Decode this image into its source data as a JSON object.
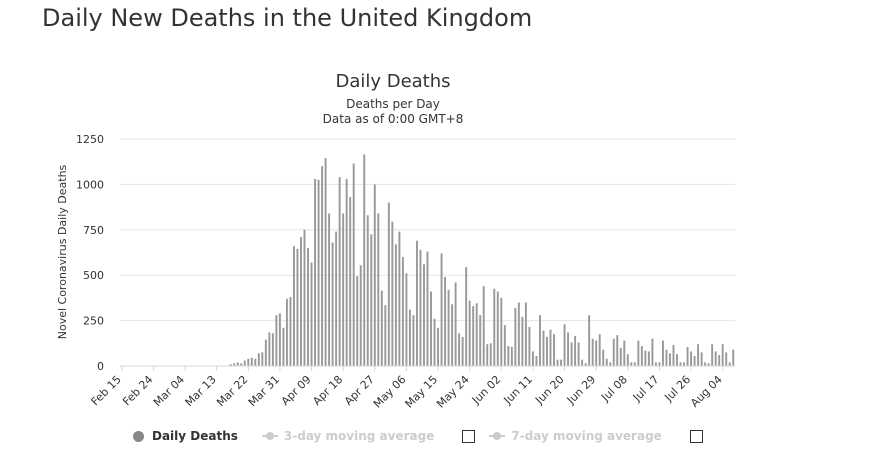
{
  "page": {
    "heading": "Daily New Deaths in the United Kingdom"
  },
  "chart_data": {
    "type": "bar",
    "title": "Daily Deaths",
    "subtitle_line1": "Deaths per Day",
    "subtitle_line2": "Data as of 0:00 GMT+8",
    "xlabel": "",
    "ylabel": "Novel Coronavirus Daily Deaths",
    "ylim": [
      0,
      1250
    ],
    "yticks": [
      0,
      250,
      500,
      750,
      1000,
      1250
    ],
    "grid": true,
    "legend_position": "bottom-left",
    "bar_color": "#999999",
    "start_date": "Feb 15",
    "xtick_labels": [
      "Feb 15",
      "Feb 24",
      "Mar 04",
      "Mar 13",
      "Mar 22",
      "Mar 31",
      "Apr 09",
      "Apr 18",
      "Apr 27",
      "May 06",
      "May 15",
      "May 24",
      "Jun 02",
      "Jun 11",
      "Jun 20",
      "Jun 29",
      "Jul 08",
      "Jul 17",
      "Jul 26",
      "Aug 04"
    ],
    "values": [
      0,
      0,
      0,
      0,
      0,
      0,
      0,
      0,
      0,
      0,
      0,
      0,
      0,
      0,
      0,
      0,
      0,
      0,
      0,
      0,
      0,
      0,
      0,
      0,
      0,
      0,
      0,
      0,
      0,
      0,
      0,
      10,
      15,
      20,
      15,
      30,
      40,
      45,
      40,
      70,
      75,
      145,
      185,
      180,
      280,
      290,
      210,
      370,
      380,
      660,
      645,
      710,
      750,
      650,
      570,
      1030,
      1025,
      1100,
      1145,
      840,
      680,
      740,
      1040,
      840,
      1030,
      930,
      1115,
      495,
      555,
      1165,
      830,
      725,
      1000,
      840,
      415,
      335,
      900,
      795,
      670,
      740,
      600,
      510,
      310,
      280,
      690,
      640,
      560,
      630,
      410,
      260,
      210,
      620,
      490,
      420,
      340,
      460,
      180,
      160,
      545,
      360,
      330,
      345,
      280,
      440,
      120,
      125,
      425,
      410,
      375,
      225,
      110,
      105,
      320,
      350,
      270,
      350,
      215,
      80,
      55,
      280,
      195,
      160,
      200,
      175,
      35,
      35,
      230,
      185,
      130,
      165,
      130,
      35,
      15,
      280,
      150,
      140,
      175,
      90,
      40,
      20,
      150,
      170,
      100,
      140,
      65,
      20,
      20,
      140,
      110,
      85,
      80,
      150,
      20,
      20,
      140,
      90,
      70,
      115,
      65,
      20,
      20,
      105,
      80,
      55,
      120,
      75,
      20,
      15,
      120,
      80,
      60,
      120,
      75,
      20,
      90
    ],
    "legend": [
      {
        "label": "Daily Deaths",
        "active": true
      },
      {
        "label": "3-day moving average",
        "active": false
      },
      {
        "label": "7-day moving average",
        "active": false
      }
    ]
  }
}
